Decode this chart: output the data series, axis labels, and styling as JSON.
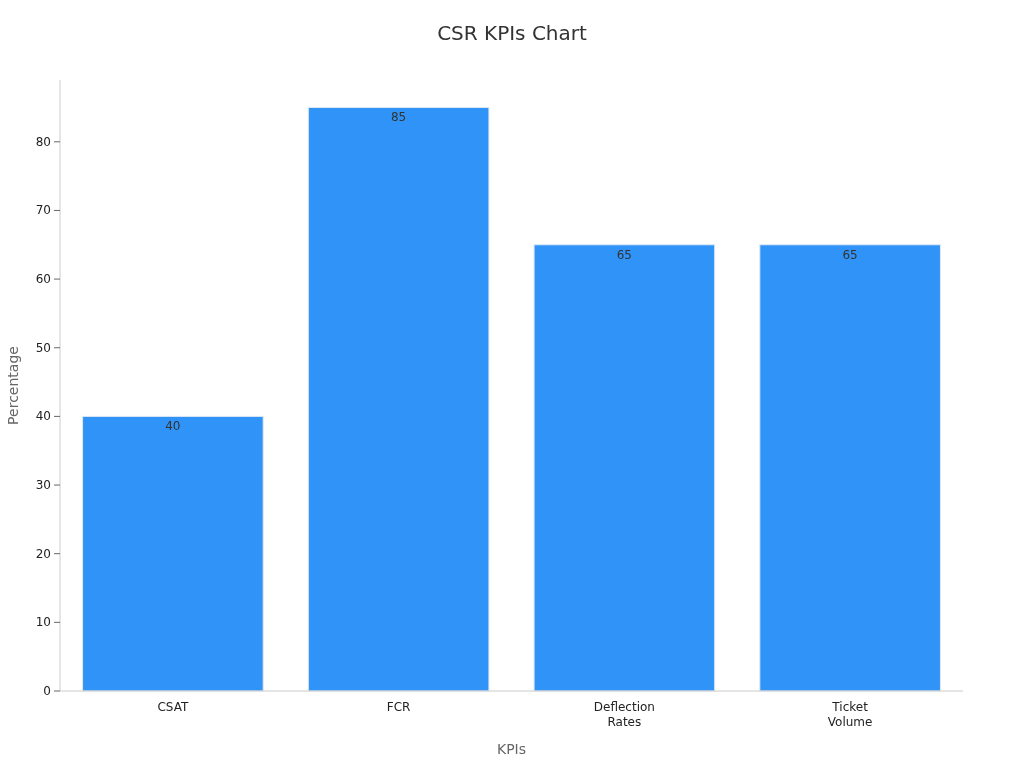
{
  "chart_data": {
    "type": "bar",
    "title": "CSR KPIs Chart",
    "xlabel": "KPIs",
    "ylabel": "Percentage",
    "categories": [
      "CSAT",
      "FCR",
      "Deflection Rates",
      "Ticket Volume"
    ],
    "values": [
      40,
      85,
      65,
      65
    ],
    "color": "#2f93f8",
    "ylim": [
      0,
      89
    ],
    "yticks": [
      0,
      10,
      20,
      30,
      40,
      50,
      60,
      70,
      80
    ],
    "data_labels": true
  }
}
